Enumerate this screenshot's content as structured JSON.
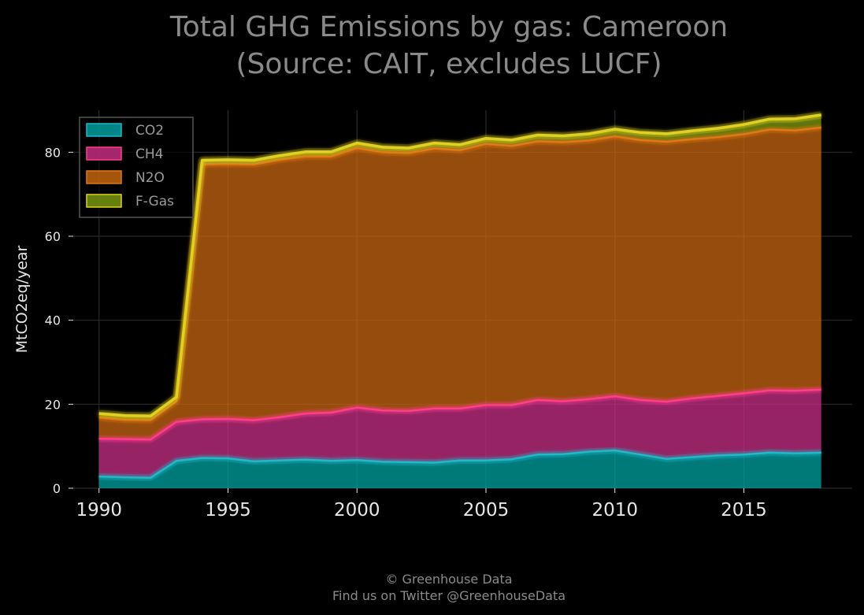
{
  "chart_data": {
    "type": "area",
    "stacked": true,
    "title": "Total GHG Emissions by gas: Cameroon",
    "subtitle": "(Source: CAIT, excludes LUCF)",
    "xlabel": "",
    "ylabel": "MtCO2eq/year",
    "xlim": [
      1990,
      2018
    ],
    "ylim": [
      0,
      90
    ],
    "x_ticks": [
      1990,
      1995,
      2000,
      2005,
      2010,
      2015
    ],
    "y_ticks": [
      0,
      20,
      40,
      60,
      80
    ],
    "grid": true,
    "legend_position": "top-left",
    "x": [
      1990,
      1991,
      1992,
      1993,
      1994,
      1995,
      1996,
      1997,
      1998,
      1999,
      2000,
      2001,
      2002,
      2003,
      2004,
      2005,
      2006,
      2007,
      2008,
      2009,
      2010,
      2011,
      2012,
      2013,
      2014,
      2015,
      2016,
      2017,
      2018
    ],
    "series": [
      {
        "name": "CO2",
        "color": "#00a8a8",
        "values": [
          2.8,
          2.6,
          2.5,
          6.5,
          7.2,
          7.1,
          6.4,
          6.6,
          6.8,
          6.5,
          6.7,
          6.3,
          6.2,
          6.1,
          6.6,
          6.6,
          6.9,
          8.0,
          8.1,
          8.7,
          9.0,
          8.0,
          7.0,
          7.4,
          7.8,
          8.0,
          8.5,
          8.3,
          8.5
        ]
      },
      {
        "name": "CH4",
        "color": "#d0308a",
        "values": [
          9.0,
          9.1,
          9.1,
          9.3,
          9.2,
          9.4,
          9.8,
          10.3,
          11.0,
          11.5,
          12.5,
          12.2,
          12.2,
          12.9,
          12.4,
          13.2,
          12.9,
          13.0,
          12.6,
          12.5,
          12.9,
          13.0,
          13.6,
          14.0,
          14.2,
          14.6,
          14.8,
          14.9,
          15.0
        ]
      },
      {
        "name": "N2O",
        "color": "#d06a10",
        "values": [
          5.0,
          4.6,
          4.6,
          4.9,
          60.7,
          60.7,
          60.9,
          61.3,
          61.2,
          61.0,
          61.8,
          61.5,
          61.4,
          61.9,
          61.5,
          62.2,
          61.7,
          61.6,
          61.7,
          61.6,
          61.9,
          61.9,
          61.9,
          61.7,
          61.6,
          61.7,
          62.1,
          62.0,
          62.4
        ]
      },
      {
        "name": "F-Gas",
        "color": "#80a010",
        "values": [
          1.0,
          1.0,
          1.0,
          1.0,
          1.0,
          1.0,
          1.0,
          1.0,
          1.1,
          1.1,
          1.2,
          1.2,
          1.2,
          1.3,
          1.3,
          1.3,
          1.4,
          1.5,
          1.5,
          1.6,
          1.7,
          1.8,
          1.9,
          2.0,
          2.1,
          2.3,
          2.5,
          2.8,
          3.0
        ]
      }
    ]
  },
  "colors": {
    "background": "#000000",
    "grid": "#2a2a2a",
    "legend_frame": "#555555",
    "total_line": "#e0d020",
    "ch4_line": "#ff3d8b",
    "co2_line": "#20b8c8"
  },
  "footer": {
    "line1": "© Greenhouse Data",
    "line2": "Find us on Twitter @GreenhouseData"
  }
}
